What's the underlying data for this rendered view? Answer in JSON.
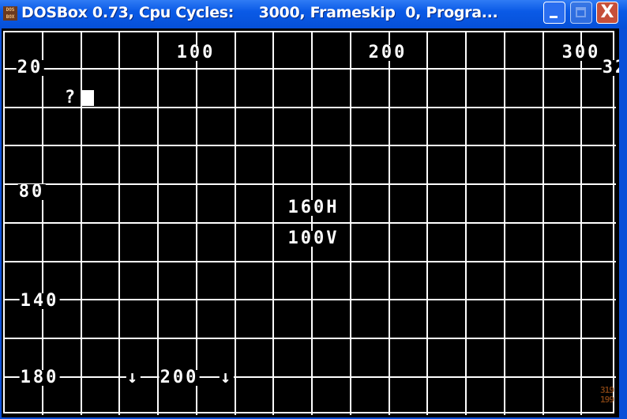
{
  "window": {
    "title": "DOSBox 0.73, Cpu Cycles:     3000, Frameskip  0, Progra...",
    "app_icon_text": "DOS BOX",
    "minimize_label": "",
    "maximize_label": "",
    "close_label": "X"
  },
  "screen": {
    "background_color": "#000000",
    "grid_color": "#ffffff",
    "top_labels": [
      "100",
      "200",
      "300",
      "32"
    ],
    "left_labels": [
      "20",
      "80",
      "140",
      "180"
    ],
    "prompt": "?",
    "center_h": "160H",
    "center_v": "100V",
    "bottom_arrow_left": "↓",
    "bottom_center": "200",
    "bottom_arrow_right": "↓",
    "resolution_width": "319",
    "resolution_height": "199",
    "resolution_color": "#7a3e12"
  }
}
